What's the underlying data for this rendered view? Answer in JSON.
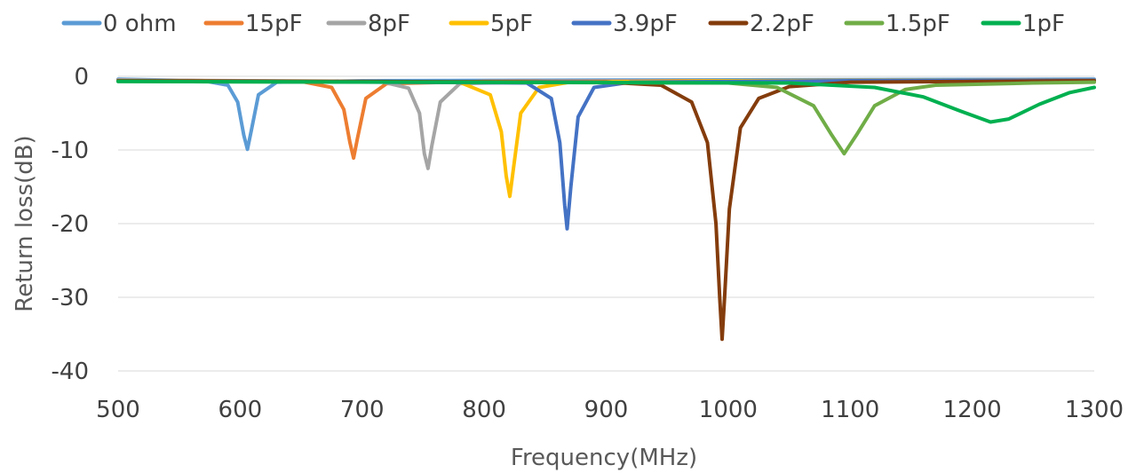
{
  "chart_data": {
    "type": "line",
    "xlabel": "Frequency(MHz)",
    "ylabel": "Return loss(dB)",
    "xlim": [
      500,
      1300
    ],
    "ylim": [
      -40,
      0
    ],
    "xticks": [
      500,
      600,
      700,
      800,
      900,
      1000,
      1100,
      1200,
      1300
    ],
    "yticks": [
      0,
      -10,
      -20,
      -30,
      -40
    ],
    "grid": "horizontal",
    "legend_position": "top",
    "series": [
      {
        "name": "0 ohm",
        "color": "#5b9bd5",
        "points": [
          [
            500,
            -0.4
          ],
          [
            570,
            -0.6
          ],
          [
            590,
            -1.2
          ],
          [
            598,
            -3.5
          ],
          [
            603,
            -8.0
          ],
          [
            606,
            -9.9
          ],
          [
            609,
            -7.5
          ],
          [
            615,
            -2.5
          ],
          [
            630,
            -0.8
          ],
          [
            700,
            -0.6
          ],
          [
            900,
            -0.5
          ],
          [
            1300,
            -0.4
          ]
        ]
      },
      {
        "name": "15pF",
        "color": "#ed7d31",
        "points": [
          [
            500,
            -0.5
          ],
          [
            650,
            -0.7
          ],
          [
            675,
            -1.5
          ],
          [
            685,
            -4.5
          ],
          [
            690,
            -9.0
          ],
          [
            693,
            -11.1
          ],
          [
            696,
            -8.5
          ],
          [
            703,
            -3.0
          ],
          [
            720,
            -1.0
          ],
          [
            800,
            -0.7
          ],
          [
            1000,
            -0.6
          ],
          [
            1300,
            -0.5
          ]
        ]
      },
      {
        "name": "8pF",
        "color": "#a5a5a5",
        "points": [
          [
            500,
            -0.5
          ],
          [
            715,
            -0.7
          ],
          [
            738,
            -1.6
          ],
          [
            747,
            -5.0
          ],
          [
            751,
            -10.5
          ],
          [
            754,
            -12.5
          ],
          [
            757,
            -9.5
          ],
          [
            764,
            -3.5
          ],
          [
            780,
            -1.0
          ],
          [
            850,
            -0.7
          ],
          [
            1100,
            -0.6
          ],
          [
            1300,
            -0.5
          ]
        ]
      },
      {
        "name": "5pF",
        "color": "#ffc000",
        "points": [
          [
            500,
            -0.6
          ],
          [
            780,
            -0.8
          ],
          [
            805,
            -2.5
          ],
          [
            814,
            -7.5
          ],
          [
            818,
            -13.5
          ],
          [
            821,
            -16.3
          ],
          [
            824,
            -12.5
          ],
          [
            830,
            -5.0
          ],
          [
            845,
            -1.5
          ],
          [
            870,
            -0.8
          ],
          [
            1000,
            -0.6
          ],
          [
            1300,
            -0.5
          ]
        ]
      },
      {
        "name": "3.9pF",
        "color": "#4472c4",
        "points": [
          [
            500,
            -0.6
          ],
          [
            835,
            -0.9
          ],
          [
            855,
            -3.0
          ],
          [
            862,
            -9.0
          ],
          [
            866,
            -17.5
          ],
          [
            868,
            -20.7
          ],
          [
            871,
            -15.0
          ],
          [
            877,
            -5.5
          ],
          [
            890,
            -1.5
          ],
          [
            920,
            -0.8
          ],
          [
            1100,
            -0.6
          ],
          [
            1300,
            -0.5
          ]
        ]
      },
      {
        "name": "2.2pF",
        "color": "#843c0c",
        "points": [
          [
            500,
            -0.6
          ],
          [
            900,
            -0.8
          ],
          [
            945,
            -1.2
          ],
          [
            970,
            -3.5
          ],
          [
            983,
            -9.0
          ],
          [
            990,
            -20.0
          ],
          [
            993,
            -30.0
          ],
          [
            995,
            -35.7
          ],
          [
            997,
            -30.0
          ],
          [
            1001,
            -18.0
          ],
          [
            1010,
            -7.0
          ],
          [
            1025,
            -3.0
          ],
          [
            1050,
            -1.4
          ],
          [
            1100,
            -0.8
          ],
          [
            1300,
            -0.6
          ]
        ]
      },
      {
        "name": "1.5pF",
        "color": "#70ad47",
        "points": [
          [
            500,
            -0.7
          ],
          [
            1000,
            -0.9
          ],
          [
            1040,
            -1.5
          ],
          [
            1070,
            -4.0
          ],
          [
            1085,
            -8.0
          ],
          [
            1095,
            -10.5
          ],
          [
            1105,
            -8.0
          ],
          [
            1120,
            -4.0
          ],
          [
            1145,
            -1.8
          ],
          [
            1170,
            -1.2
          ],
          [
            1250,
            -0.9
          ],
          [
            1300,
            -0.8
          ]
        ]
      },
      {
        "name": "1pF",
        "color": "#00b050",
        "points": [
          [
            500,
            -0.7
          ],
          [
            1050,
            -0.9
          ],
          [
            1120,
            -1.5
          ],
          [
            1160,
            -2.8
          ],
          [
            1190,
            -4.7
          ],
          [
            1215,
            -6.2
          ],
          [
            1230,
            -5.8
          ],
          [
            1255,
            -3.8
          ],
          [
            1280,
            -2.2
          ],
          [
            1300,
            -1.5
          ]
        ]
      }
    ]
  }
}
